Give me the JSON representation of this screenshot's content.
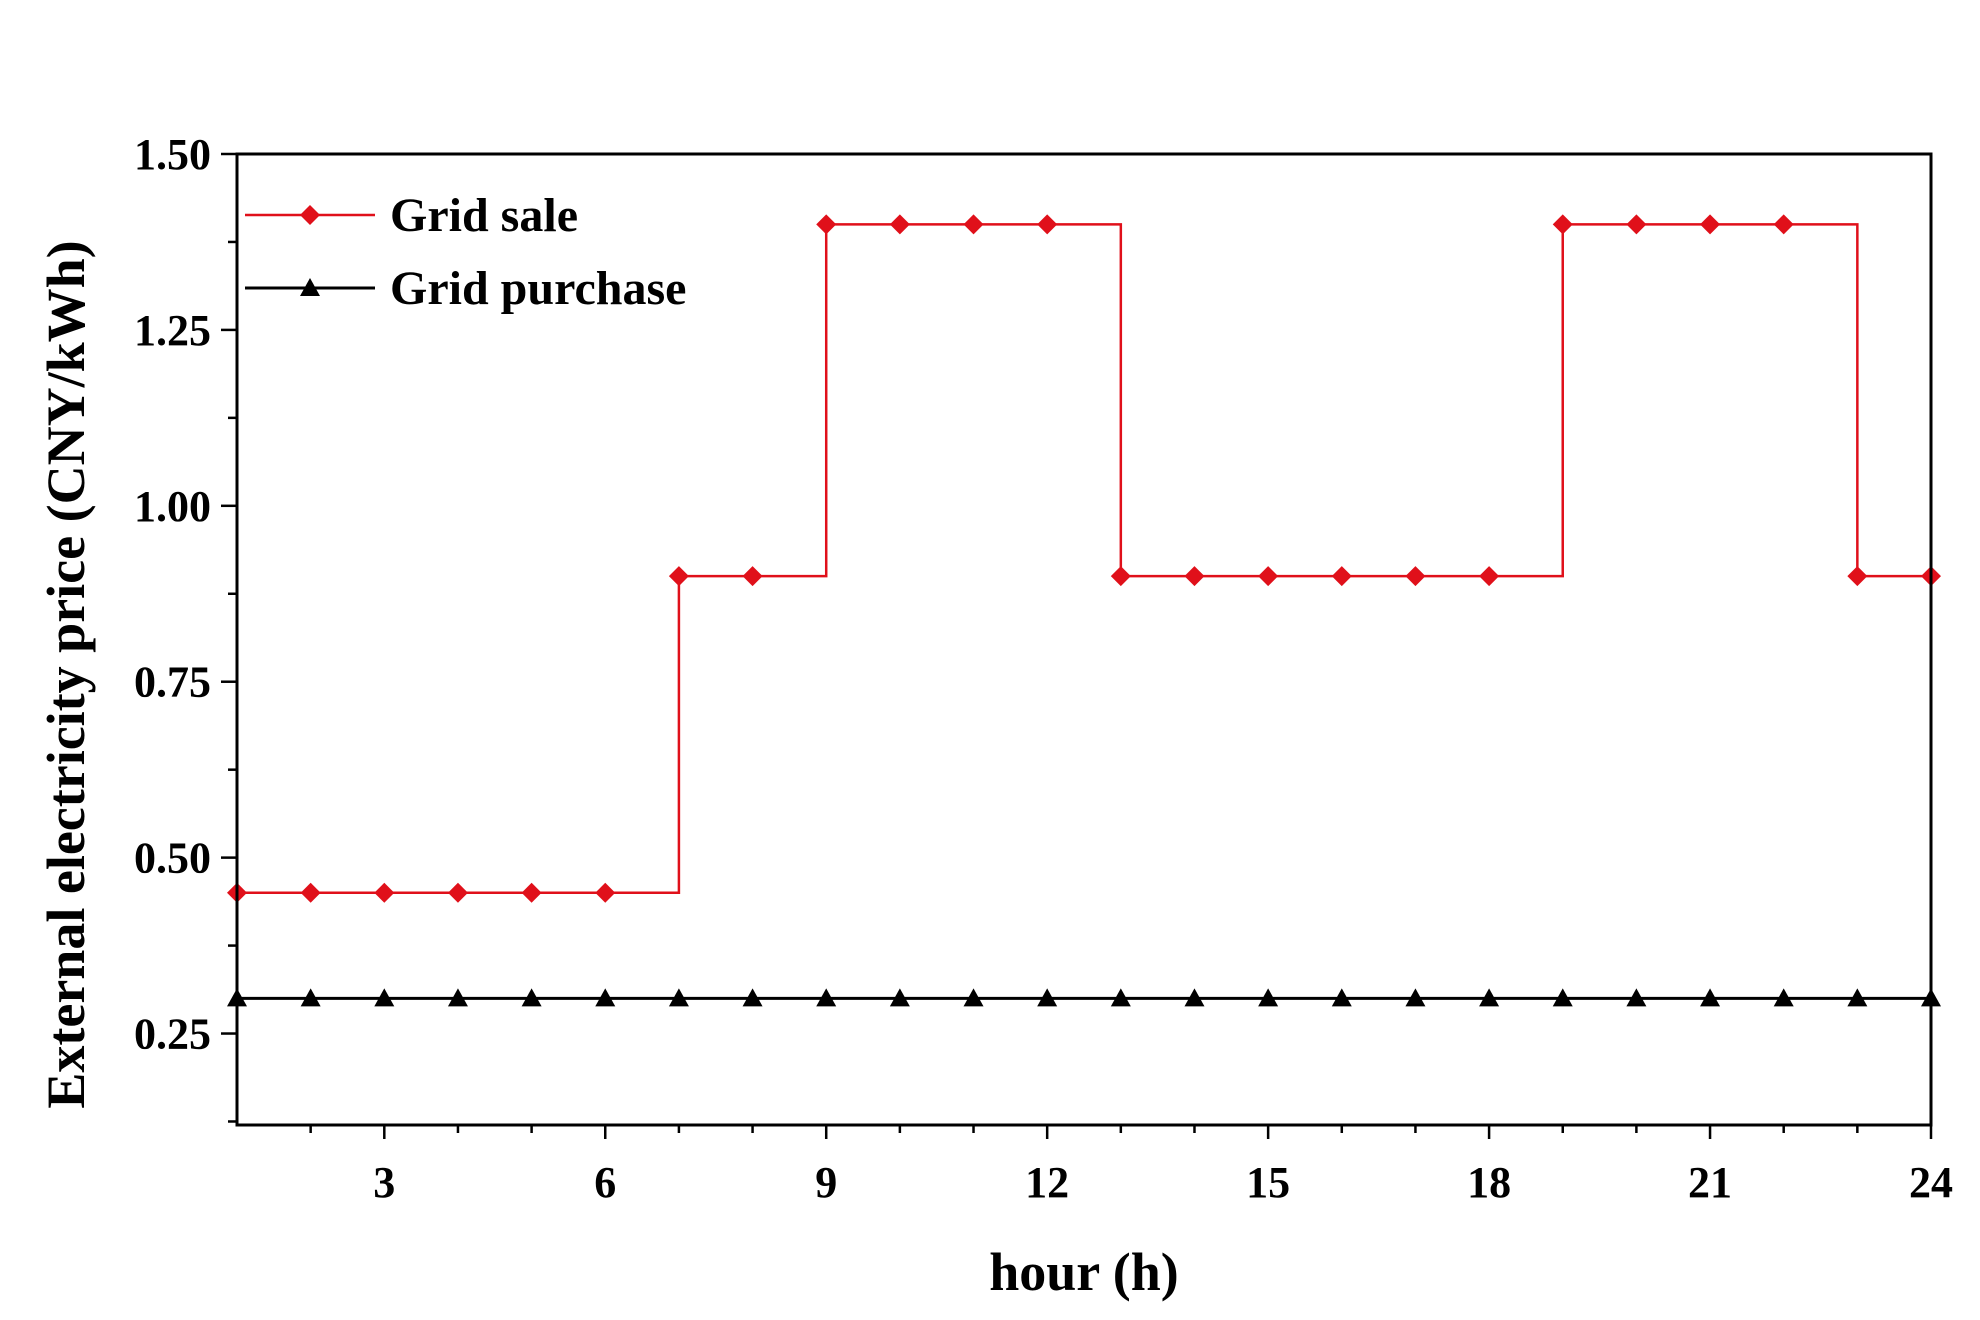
{
  "chart_data": {
    "type": "line",
    "step": "post",
    "xlabel": "hour (h)",
    "ylabel": "External electricity price (CNY/kWh)",
    "xlim": [
      1,
      24
    ],
    "ylim": [
      0.12,
      1.5
    ],
    "xticks": [
      3,
      6,
      9,
      12,
      15,
      18,
      21,
      24
    ],
    "xtick_labels": [
      "3",
      "6",
      "9",
      "12",
      "15",
      "18",
      "21",
      "24"
    ],
    "yticks": [
      0.25,
      0.5,
      0.75,
      1.0,
      1.25,
      1.5
    ],
    "ytick_labels": [
      "0.25",
      "0.50",
      "0.75",
      "1.00",
      "1.25",
      "1.50"
    ],
    "legend_position": "top-left",
    "grid": false,
    "x": [
      1,
      2,
      3,
      4,
      5,
      6,
      7,
      8,
      9,
      10,
      11,
      12,
      13,
      14,
      15,
      16,
      17,
      18,
      19,
      20,
      21,
      22,
      23,
      24
    ],
    "series": [
      {
        "name": "Grid sale",
        "color": "#e0101a",
        "marker": "diamond",
        "values": [
          0.45,
          0.45,
          0.45,
          0.45,
          0.45,
          0.45,
          0.9,
          0.9,
          1.4,
          1.4,
          1.4,
          1.4,
          0.9,
          0.9,
          0.9,
          0.9,
          0.9,
          0.9,
          1.4,
          1.4,
          1.4,
          1.4,
          0.9,
          0.9
        ]
      },
      {
        "name": "Grid purchase",
        "color": "#000000",
        "marker": "triangle",
        "values": [
          0.3,
          0.3,
          0.3,
          0.3,
          0.3,
          0.3,
          0.3,
          0.3,
          0.3,
          0.3,
          0.3,
          0.3,
          0.3,
          0.3,
          0.3,
          0.3,
          0.3,
          0.3,
          0.3,
          0.3,
          0.3,
          0.3,
          0.3,
          0.3
        ]
      }
    ]
  }
}
